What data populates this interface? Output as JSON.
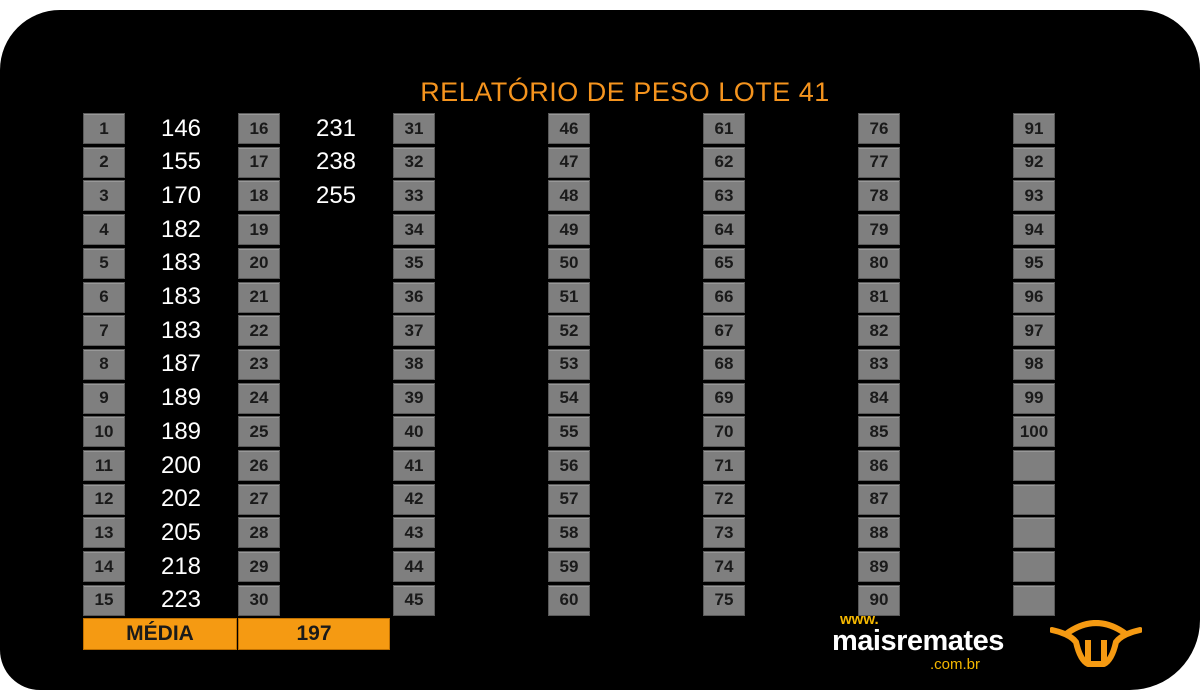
{
  "title": "RELATÓRIO DE PESO LOTE 41",
  "lots": [
    {
      "number": "1",
      "weight": "146"
    },
    {
      "number": "2",
      "weight": "155"
    },
    {
      "number": "3",
      "weight": "170"
    },
    {
      "number": "4",
      "weight": "182"
    },
    {
      "number": "5",
      "weight": "183"
    },
    {
      "number": "6",
      "weight": "183"
    },
    {
      "number": "7",
      "weight": "183"
    },
    {
      "number": "8",
      "weight": "187"
    },
    {
      "number": "9",
      "weight": "189"
    },
    {
      "number": "10",
      "weight": "189"
    },
    {
      "number": "11",
      "weight": "200"
    },
    {
      "number": "12",
      "weight": "202"
    },
    {
      "number": "13",
      "weight": "205"
    },
    {
      "number": "14",
      "weight": "218"
    },
    {
      "number": "15",
      "weight": "223"
    },
    {
      "number": "16",
      "weight": "231"
    },
    {
      "number": "17",
      "weight": "238"
    },
    {
      "number": "18",
      "weight": "255"
    },
    {
      "number": "19",
      "weight": ""
    },
    {
      "number": "20",
      "weight": ""
    },
    {
      "number": "21",
      "weight": ""
    },
    {
      "number": "22",
      "weight": ""
    },
    {
      "number": "23",
      "weight": ""
    },
    {
      "number": "24",
      "weight": ""
    },
    {
      "number": "25",
      "weight": ""
    },
    {
      "number": "26",
      "weight": ""
    },
    {
      "number": "27",
      "weight": ""
    },
    {
      "number": "28",
      "weight": ""
    },
    {
      "number": "29",
      "weight": ""
    },
    {
      "number": "30",
      "weight": ""
    },
    {
      "number": "31",
      "weight": ""
    },
    {
      "number": "32",
      "weight": ""
    },
    {
      "number": "33",
      "weight": ""
    },
    {
      "number": "34",
      "weight": ""
    },
    {
      "number": "35",
      "weight": ""
    },
    {
      "number": "36",
      "weight": ""
    },
    {
      "number": "37",
      "weight": ""
    },
    {
      "number": "38",
      "weight": ""
    },
    {
      "number": "39",
      "weight": ""
    },
    {
      "number": "40",
      "weight": ""
    },
    {
      "number": "41",
      "weight": ""
    },
    {
      "number": "42",
      "weight": ""
    },
    {
      "number": "43",
      "weight": ""
    },
    {
      "number": "44",
      "weight": ""
    },
    {
      "number": "45",
      "weight": ""
    },
    {
      "number": "46",
      "weight": ""
    },
    {
      "number": "47",
      "weight": ""
    },
    {
      "number": "48",
      "weight": ""
    },
    {
      "number": "49",
      "weight": ""
    },
    {
      "number": "50",
      "weight": ""
    },
    {
      "number": "51",
      "weight": ""
    },
    {
      "number": "52",
      "weight": ""
    },
    {
      "number": "53",
      "weight": ""
    },
    {
      "number": "54",
      "weight": ""
    },
    {
      "number": "55",
      "weight": ""
    },
    {
      "number": "56",
      "weight": ""
    },
    {
      "number": "57",
      "weight": ""
    },
    {
      "number": "58",
      "weight": ""
    },
    {
      "number": "59",
      "weight": ""
    },
    {
      "number": "60",
      "weight": ""
    },
    {
      "number": "61",
      "weight": ""
    },
    {
      "number": "62",
      "weight": ""
    },
    {
      "number": "63",
      "weight": ""
    },
    {
      "number": "64",
      "weight": ""
    },
    {
      "number": "65",
      "weight": ""
    },
    {
      "number": "66",
      "weight": ""
    },
    {
      "number": "67",
      "weight": ""
    },
    {
      "number": "68",
      "weight": ""
    },
    {
      "number": "69",
      "weight": ""
    },
    {
      "number": "70",
      "weight": ""
    },
    {
      "number": "71",
      "weight": ""
    },
    {
      "number": "72",
      "weight": ""
    },
    {
      "number": "73",
      "weight": ""
    },
    {
      "number": "74",
      "weight": ""
    },
    {
      "number": "75",
      "weight": ""
    },
    {
      "number": "76",
      "weight": ""
    },
    {
      "number": "77",
      "weight": ""
    },
    {
      "number": "78",
      "weight": ""
    },
    {
      "number": "79",
      "weight": ""
    },
    {
      "number": "80",
      "weight": ""
    },
    {
      "number": "81",
      "weight": ""
    },
    {
      "number": "82",
      "weight": ""
    },
    {
      "number": "83",
      "weight": ""
    },
    {
      "number": "84",
      "weight": ""
    },
    {
      "number": "85",
      "weight": ""
    },
    {
      "number": "86",
      "weight": ""
    },
    {
      "number": "87",
      "weight": ""
    },
    {
      "number": "88",
      "weight": ""
    },
    {
      "number": "89",
      "weight": ""
    },
    {
      "number": "90",
      "weight": ""
    },
    {
      "number": "91",
      "weight": ""
    },
    {
      "number": "92",
      "weight": ""
    },
    {
      "number": "93",
      "weight": ""
    },
    {
      "number": "94",
      "weight": ""
    },
    {
      "number": "95",
      "weight": ""
    },
    {
      "number": "96",
      "weight": ""
    },
    {
      "number": "97",
      "weight": ""
    },
    {
      "number": "98",
      "weight": ""
    },
    {
      "number": "99",
      "weight": ""
    },
    {
      "number": "100",
      "weight": ""
    },
    {
      "number": "",
      "weight": ""
    },
    {
      "number": "",
      "weight": ""
    },
    {
      "number": "",
      "weight": ""
    },
    {
      "number": "",
      "weight": ""
    },
    {
      "number": "",
      "weight": ""
    }
  ],
  "average": {
    "label": "MÉDIA",
    "value": "197"
  },
  "logo": {
    "www": "www.",
    "brand": "maisremates",
    "domain": ".com.br",
    "icon": "bull-head-icon"
  },
  "colors": {
    "accent": "#f59a12",
    "title": "#f5941e",
    "cell": "#7f7f7f",
    "background": "#000000"
  }
}
